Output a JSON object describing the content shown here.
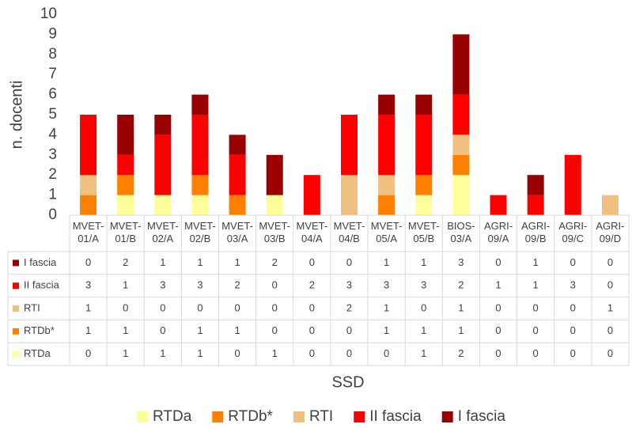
{
  "chart_data": {
    "type": "stacked_bar",
    "y_label": "n. docenti",
    "x_label": "SSD",
    "categories": [
      "MVET-01/A",
      "MVET-01/B",
      "MVET-02/A",
      "MVET-02/B",
      "MVET-03/A",
      "MVET-03/B",
      "MVET-04/A",
      "MVET-04/B",
      "MVET-05/A",
      "MVET-05/B",
      "BIOS-03/A",
      "AGRI-09/A",
      "AGRI-09/B",
      "AGRI-09/C",
      "AGRI-09/D"
    ],
    "series": [
      {
        "name": "RTDa",
        "color": "#ffff99",
        "values": [
          0,
          1,
          1,
          1,
          0,
          1,
          0,
          0,
          0,
          1,
          2,
          0,
          0,
          0,
          0
        ]
      },
      {
        "name": "RTDb*",
        "color": "#ff8000",
        "values": [
          1,
          1,
          0,
          1,
          1,
          0,
          0,
          0,
          1,
          1,
          1,
          0,
          0,
          0,
          0
        ]
      },
      {
        "name": "RTI",
        "color": "#f0c080",
        "values": [
          1,
          0,
          0,
          0,
          0,
          0,
          0,
          2,
          1,
          0,
          1,
          0,
          0,
          0,
          1
        ]
      },
      {
        "name": "II fascia",
        "color": "#ff0000",
        "values": [
          3,
          1,
          3,
          3,
          2,
          0,
          2,
          3,
          3,
          3,
          2,
          1,
          1,
          3,
          0
        ]
      },
      {
        "name": "I fascia",
        "color": "#990000",
        "values": [
          0,
          2,
          1,
          1,
          1,
          2,
          0,
          0,
          1,
          1,
          3,
          0,
          1,
          0,
          0
        ]
      }
    ],
    "ylim": [
      0,
      10
    ],
    "yticks": [
      0,
      1,
      2,
      3,
      4,
      5,
      6,
      7,
      8,
      9,
      10
    ],
    "legend": "bottom",
    "data_table": true
  }
}
